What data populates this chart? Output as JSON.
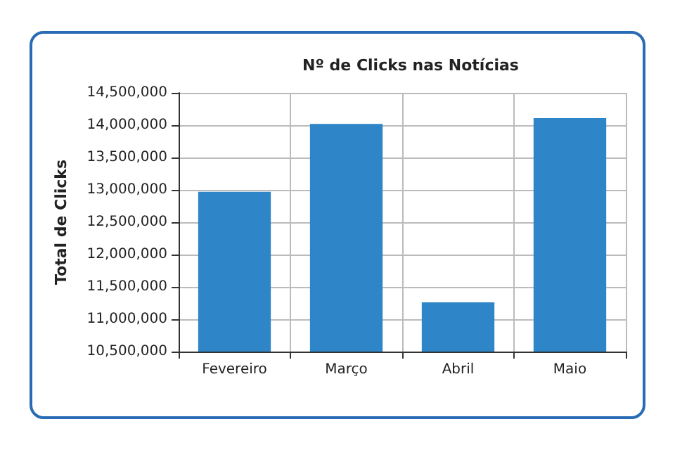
{
  "chart_data": {
    "type": "bar",
    "title": "Nº de Clicks nas Notícias",
    "ylabel": "Total de Clicks",
    "categories": [
      "Fevereiro",
      "Março",
      "Abril",
      "Maio"
    ],
    "values": [
      12970000,
      14020000,
      11260000,
      14110000
    ],
    "color": "#2e86c8",
    "ylim": [
      10500000,
      14500000
    ],
    "yticks": [
      {
        "value": 10500000,
        "label": "10,500,000"
      },
      {
        "value": 11000000,
        "label": "11,000,000"
      },
      {
        "value": 11500000,
        "label": "11,500,000"
      },
      {
        "value": 12000000,
        "label": "12,000,000"
      },
      {
        "value": 12500000,
        "label": "12,500,000"
      },
      {
        "value": 13000000,
        "label": "13,000,000"
      },
      {
        "value": 13500000,
        "label": "13,500,000"
      },
      {
        "value": 14000000,
        "label": "14,000,000"
      },
      {
        "value": 14500000,
        "label": "14,500,000"
      }
    ],
    "grid": true
  }
}
